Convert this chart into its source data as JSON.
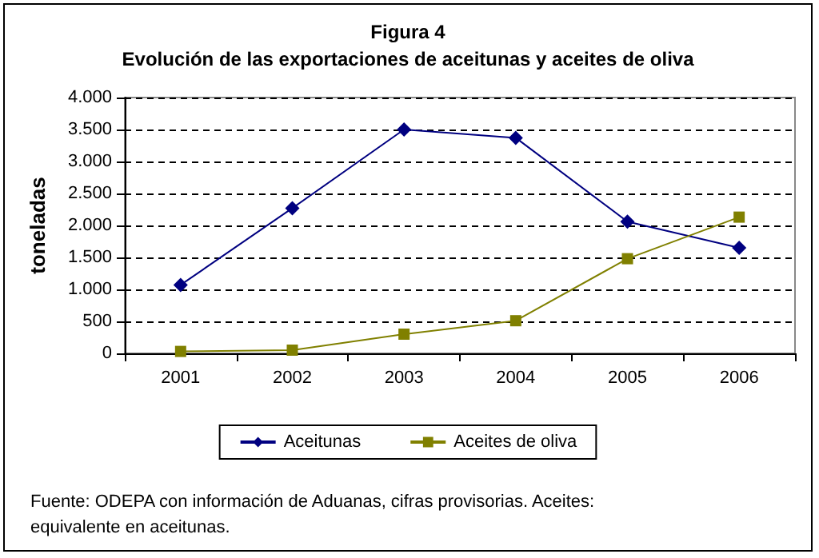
{
  "chart_data": {
    "type": "line",
    "title": "Figura 4",
    "subtitle": "Evolución de las exportaciones de aceitunas y aceites de oliva",
    "ylabel": "toneladas",
    "categories": [
      "2001",
      "2002",
      "2003",
      "2004",
      "2005",
      "2006"
    ],
    "series": [
      {
        "name": "Aceitunas",
        "color": "#000080",
        "marker": "diamond",
        "values": [
          1070,
          2270,
          3500,
          3370,
          2060,
          1650
        ]
      },
      {
        "name": "Aceites de oliva",
        "color": "#808000",
        "marker": "square",
        "values": [
          30,
          50,
          300,
          510,
          1480,
          2130
        ]
      }
    ],
    "ylim": [
      0,
      4000
    ],
    "yticks": [
      {
        "value": 0,
        "label": "0"
      },
      {
        "value": 500,
        "label": "500"
      },
      {
        "value": 1000,
        "label": "1.000"
      },
      {
        "value": 1500,
        "label": "1.500"
      },
      {
        "value": 2000,
        "label": "2.000"
      },
      {
        "value": 2500,
        "label": "2.500"
      },
      {
        "value": 3000,
        "label": "3.000"
      },
      {
        "value": 3500,
        "label": "3.500"
      },
      {
        "value": 4000,
        "label": "4.000"
      }
    ],
    "grid": "y",
    "legend": "bottom",
    "line_style": "solid",
    "annotations": [
      "Fuente: ODEPA con información de Aduanas, cifras provisorias. Aceites: equivalente en aceitunas."
    ]
  }
}
